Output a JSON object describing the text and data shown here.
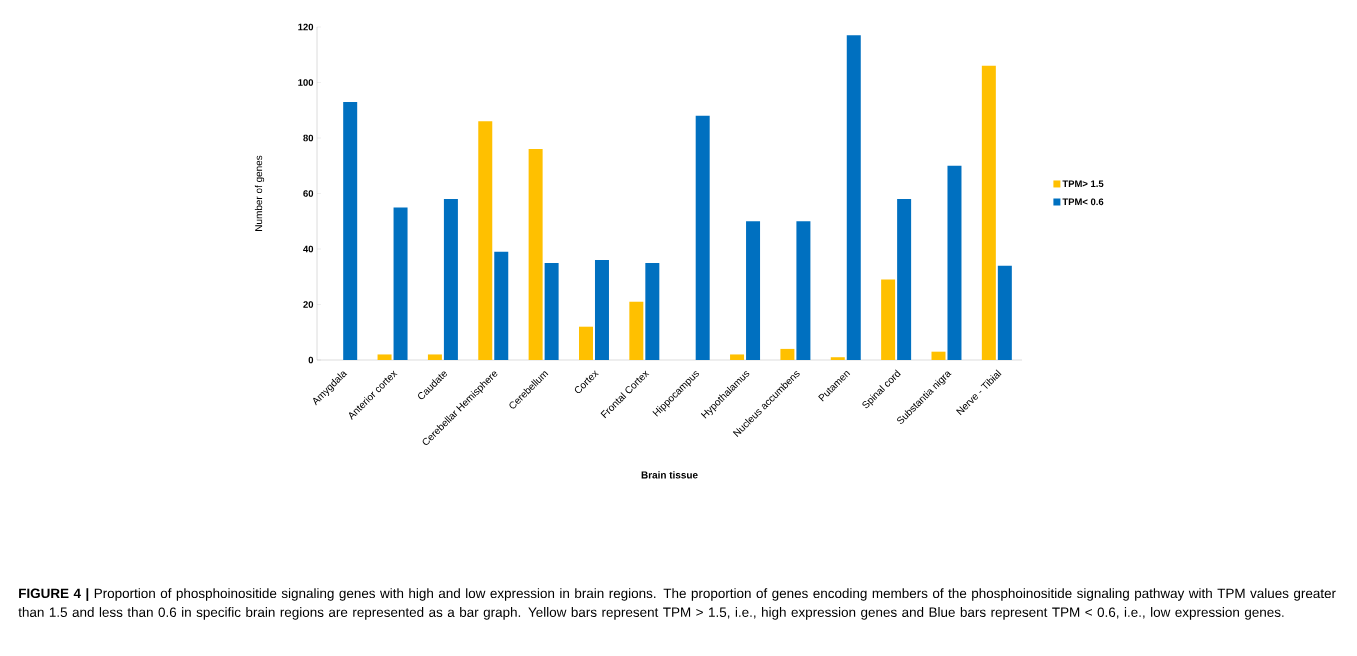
{
  "chart_data": {
    "type": "bar",
    "categories": [
      "Amygdala",
      "Anterior cortex",
      "Caudate",
      "Cerebellar Hemisphere",
      "Cerebellum",
      "Cortex",
      "Frontal Cortex",
      "Hippocampus",
      "Hypothalamus",
      "Nucleus accumbens",
      "Putamen",
      "Spinal cord",
      "Substantia nigra",
      "Nerve - Tibial"
    ],
    "series": [
      {
        "name": "TPM> 1.5",
        "color": "#ffc000",
        "values": [
          0,
          2,
          2,
          86,
          76,
          12,
          21,
          0,
          2,
          4,
          1,
          29,
          3,
          106
        ]
      },
      {
        "name": "TPM< 0.6",
        "color": "#0070c0",
        "values": [
          93,
          55,
          58,
          39,
          35,
          36,
          35,
          88,
          50,
          50,
          117,
          58,
          70,
          34
        ]
      }
    ],
    "xlabel": "Brain tissue",
    "ylabel": "Number of genes",
    "ylim": [
      0,
      120
    ],
    "yticks": [
      0,
      20,
      40,
      60,
      80,
      100,
      120
    ],
    "legend": "right",
    "grid": false,
    "annotations": [
      "**FIGURE 4 |** Proportion of phosphoinositide signaling genes with high and low expression in brain regions. The proportion of genes encoding members of the phosphoinositide signaling pathway with TPM values greater than 1.5 and less than 0.6 in specific brain regions are represented as a bar graph. Yellow bars represent TPM > 1.5, i.e., high expression genes and Blue bars represent TPM < 0.6, i.e., low expression genes."
    ]
  }
}
